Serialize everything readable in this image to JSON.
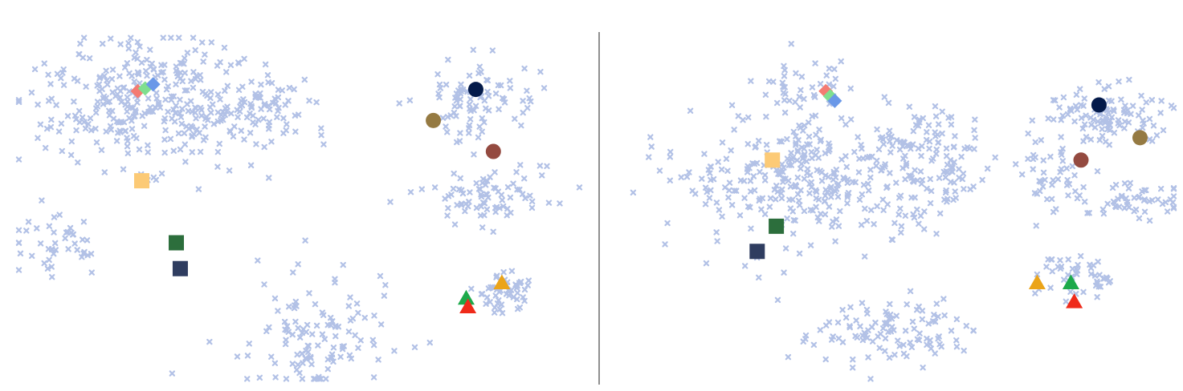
{
  "chart_data": [
    {
      "type": "scatter",
      "panel": "left",
      "background": {
        "color": "#b2c1e6",
        "marker": "x",
        "clusters": [
          {
            "cx": 0.235,
            "cy": -0.19,
            "sx": 0.105,
            "sy": 0.09,
            "n": 340
          },
          {
            "cx": 0.455,
            "cy": -0.215,
            "sx": 0.05,
            "sy": 0.05,
            "n": 60
          },
          {
            "cx": 0.81,
            "cy": -0.19,
            "sx": 0.05,
            "sy": 0.06,
            "n": 90
          },
          {
            "cx": 0.835,
            "cy": -0.47,
            "sx": 0.065,
            "sy": 0.04,
            "n": 80
          },
          {
            "cx": 0.53,
            "cy": -0.87,
            "sx": 0.07,
            "sy": 0.09,
            "n": 120
          },
          {
            "cx": 0.86,
            "cy": -0.74,
            "sx": 0.025,
            "sy": 0.035,
            "n": 50
          },
          {
            "cx": 0.075,
            "cy": -0.6,
            "sx": 0.04,
            "sy": 0.04,
            "n": 45
          }
        ]
      },
      "highlights": [
        {
          "shape": "diamond",
          "color": "#f47b72",
          "x": 0.215,
          "y": -0.16
        },
        {
          "shape": "diamond",
          "color": "#7fdf8f",
          "x": 0.228,
          "y": -0.152
        },
        {
          "shape": "diamond",
          "color": "#6a98e8",
          "x": 0.242,
          "y": -0.14
        },
        {
          "shape": "square",
          "color": "#fcca76",
          "x": 0.222,
          "y": -0.42
        },
        {
          "shape": "square",
          "color": "#2c6e3c",
          "x": 0.283,
          "y": -0.6
        },
        {
          "shape": "square",
          "color": "#2f3d60",
          "x": 0.29,
          "y": -0.675
        },
        {
          "shape": "circle",
          "color": "#041a4a",
          "x": 0.812,
          "y": -0.155
        },
        {
          "shape": "circle",
          "color": "#957a42",
          "x": 0.737,
          "y": -0.245
        },
        {
          "shape": "circle",
          "color": "#944a40",
          "x": 0.843,
          "y": -0.335
        },
        {
          "shape": "triangle",
          "color": "#eba419",
          "x": 0.858,
          "y": -0.715
        },
        {
          "shape": "triangle",
          "color": "#1ca94a",
          "x": 0.795,
          "y": -0.76
        },
        {
          "shape": "triangle",
          "color": "#ef2a1a",
          "x": 0.798,
          "y": -0.785
        }
      ]
    },
    {
      "type": "scatter",
      "panel": "right",
      "background": {
        "color": "#b2c1e6",
        "marker": "x",
        "clusters": [
          {
            "cx": 0.35,
            "cy": -0.14,
            "sx": 0.04,
            "sy": 0.05,
            "n": 40
          },
          {
            "cx": 0.33,
            "cy": -0.41,
            "sx": 0.12,
            "sy": 0.09,
            "n": 330
          },
          {
            "cx": 0.56,
            "cy": -0.36,
            "sx": 0.06,
            "sy": 0.08,
            "n": 110
          },
          {
            "cx": 0.87,
            "cy": -0.23,
            "sx": 0.06,
            "sy": 0.05,
            "n": 110
          },
          {
            "cx": 0.78,
            "cy": -0.42,
            "sx": 0.035,
            "sy": 0.06,
            "n": 45
          },
          {
            "cx": 0.93,
            "cy": -0.48,
            "sx": 0.04,
            "sy": 0.03,
            "n": 50
          },
          {
            "cx": 0.82,
            "cy": -0.69,
            "sx": 0.04,
            "sy": 0.03,
            "n": 50
          },
          {
            "cx": 0.48,
            "cy": -0.86,
            "sx": 0.08,
            "sy": 0.05,
            "n": 110
          }
        ]
      },
      "highlights": [
        {
          "shape": "diamond",
          "color": "#f47b72",
          "x": 0.376,
          "y": -0.16
        },
        {
          "shape": "diamond",
          "color": "#7fdf8f",
          "x": 0.384,
          "y": -0.175
        },
        {
          "shape": "diamond",
          "color": "#6a98e8",
          "x": 0.392,
          "y": -0.188
        },
        {
          "shape": "square",
          "color": "#fcca76",
          "x": 0.281,
          "y": -0.36
        },
        {
          "shape": "square",
          "color": "#2c6e3c",
          "x": 0.288,
          "y": -0.552
        },
        {
          "shape": "square",
          "color": "#2f3d60",
          "x": 0.254,
          "y": -0.625
        },
        {
          "shape": "circle",
          "color": "#041a4a",
          "x": 0.862,
          "y": -0.2
        },
        {
          "shape": "circle",
          "color": "#957a42",
          "x": 0.935,
          "y": -0.295
        },
        {
          "shape": "circle",
          "color": "#944a40",
          "x": 0.83,
          "y": -0.36
        },
        {
          "shape": "triangle",
          "color": "#eba419",
          "x": 0.752,
          "y": -0.715
        },
        {
          "shape": "triangle",
          "color": "#1ca94a",
          "x": 0.812,
          "y": -0.715
        },
        {
          "shape": "triangle",
          "color": "#ef2a1a",
          "x": 0.818,
          "y": -0.77
        }
      ]
    }
  ],
  "colors": {
    "divider": "#222222",
    "background_points": "#b2c1e6"
  }
}
